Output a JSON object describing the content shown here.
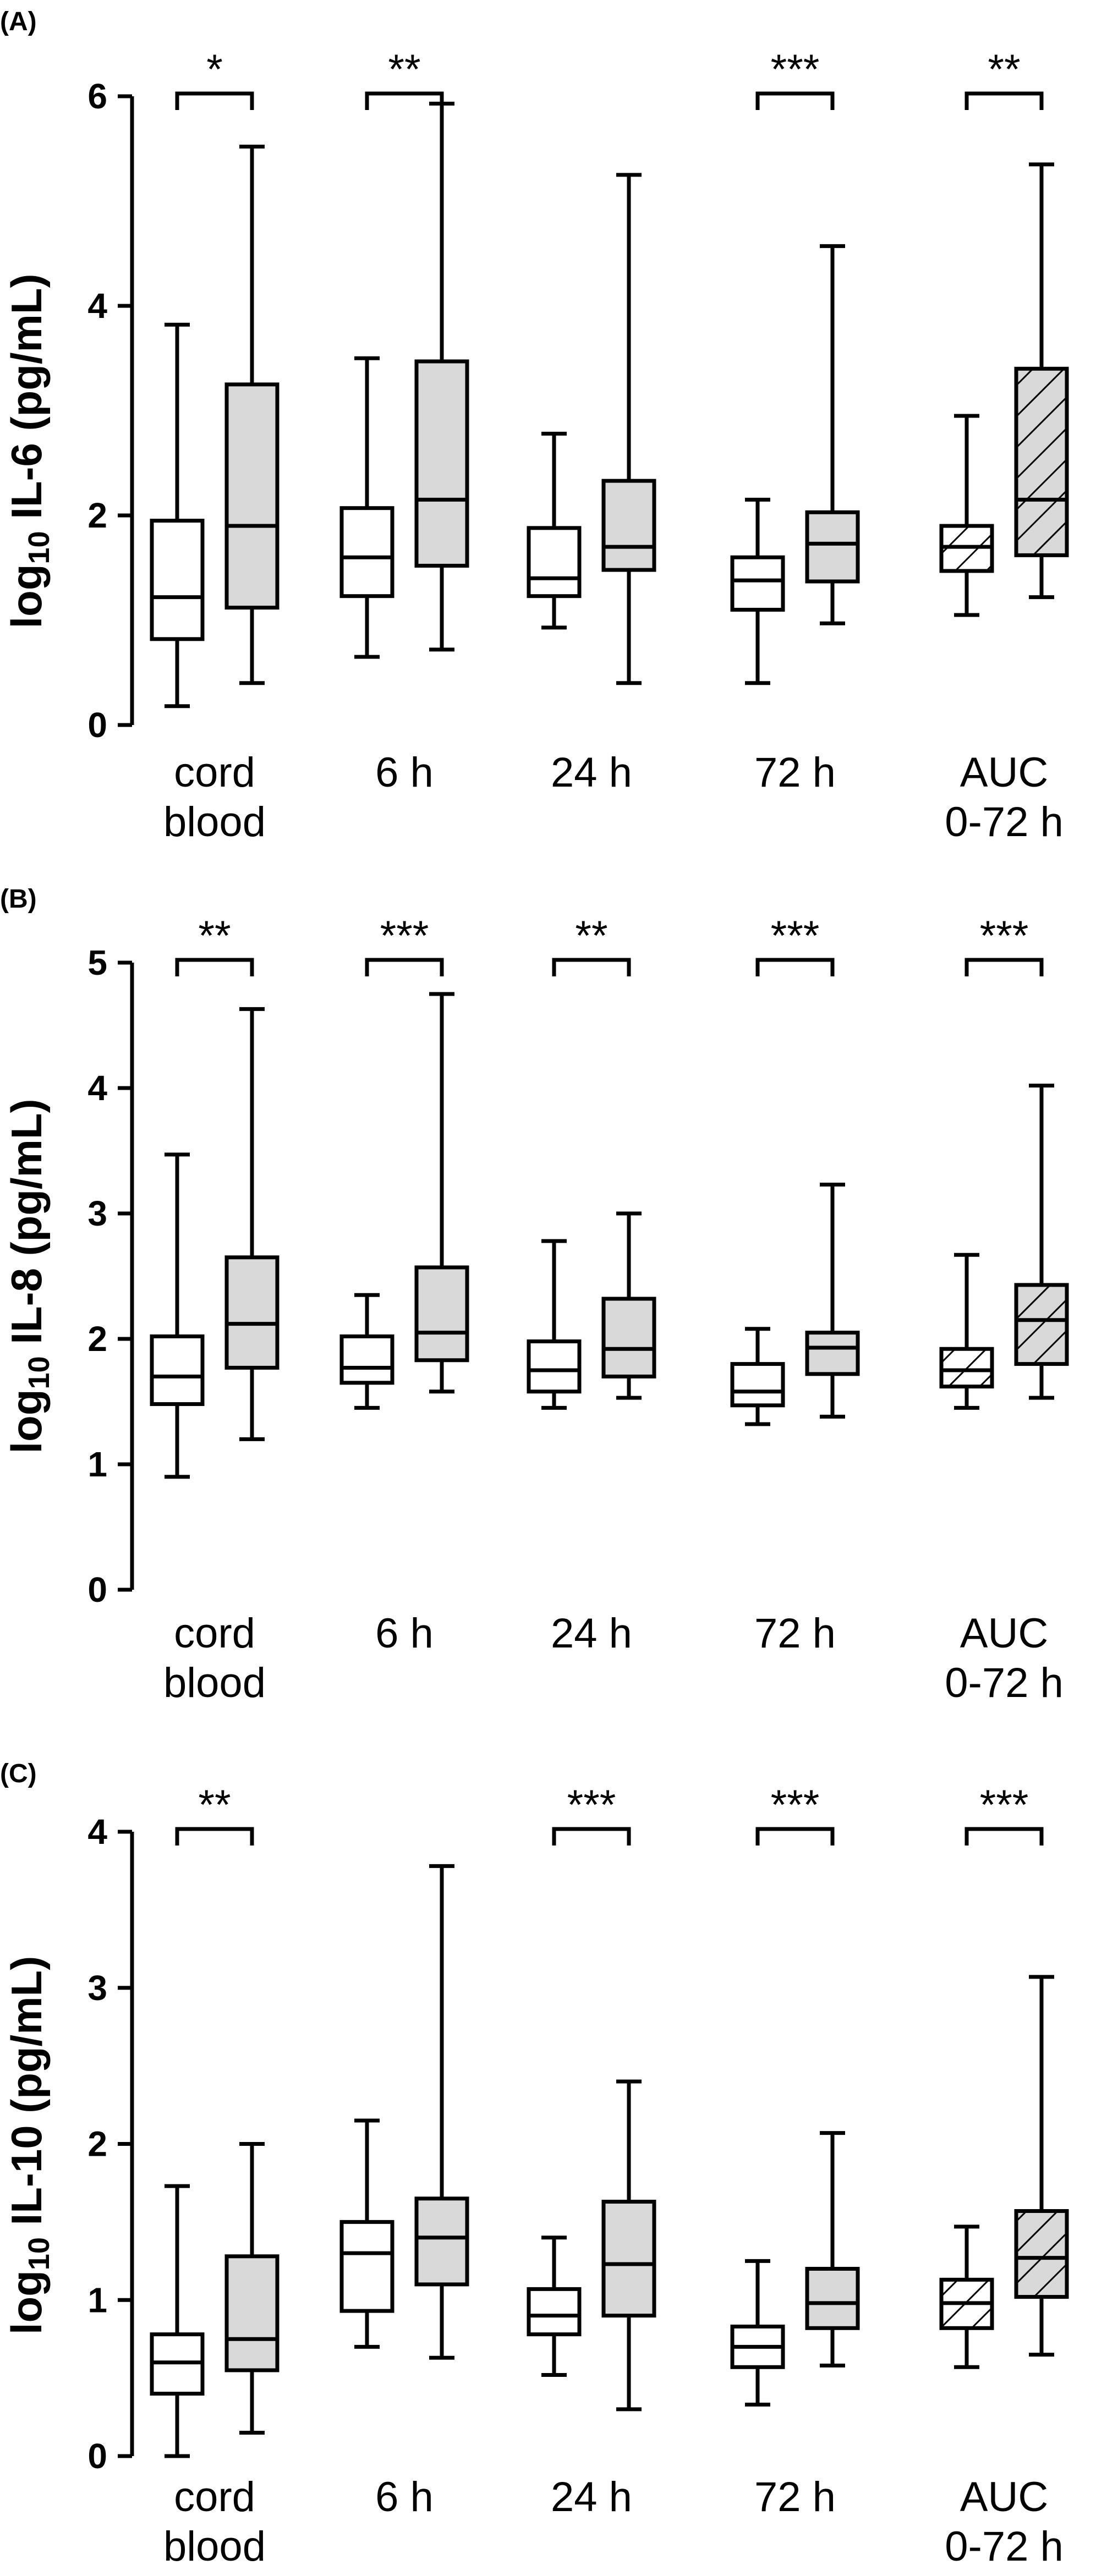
{
  "chart_data": [
    {
      "panel": "(A)",
      "type": "box",
      "ylabel": {
        "prefix": "log",
        "sub": "10",
        "rest": " IL-6 (pg/mL)"
      },
      "ylim": [
        0,
        6
      ],
      "yticks": [
        "0",
        "2",
        "4",
        "6"
      ],
      "yticks_values": [
        0,
        2,
        4,
        6
      ],
      "categories": [
        "cord blood",
        "6 h",
        "24 h",
        "72 h",
        "AUC 0-72 h"
      ],
      "category_lines": [
        [
          "cord",
          "blood"
        ],
        [
          "6 h"
        ],
        [
          "24 h"
        ],
        [
          "72 h"
        ],
        [
          "AUC",
          "0-72 h"
        ]
      ],
      "boxes": [
        [
          {
            "min": 0.18,
            "q1": 0.82,
            "median": 1.22,
            "q3": 1.95,
            "max": 3.82
          },
          {
            "min": 0.4,
            "q1": 1.12,
            "median": 1.9,
            "q3": 3.25,
            "max": 5.52
          }
        ],
        [
          {
            "min": 0.65,
            "q1": 1.23,
            "median": 1.6,
            "q3": 2.07,
            "max": 3.5
          },
          {
            "min": 0.72,
            "q1": 1.52,
            "median": 2.15,
            "q3": 3.47,
            "max": 5.93
          }
        ],
        [
          {
            "min": 0.93,
            "q1": 1.23,
            "median": 1.4,
            "q3": 1.88,
            "max": 2.78
          },
          {
            "min": 0.4,
            "q1": 1.48,
            "median": 1.7,
            "q3": 2.33,
            "max": 5.25
          }
        ],
        [
          {
            "min": 0.4,
            "q1": 1.1,
            "median": 1.38,
            "q3": 1.6,
            "max": 2.15
          },
          {
            "min": 0.97,
            "q1": 1.37,
            "median": 1.73,
            "q3": 2.03,
            "max": 4.57
          }
        ],
        [
          {
            "min": 1.05,
            "q1": 1.47,
            "median": 1.7,
            "q3": 1.9,
            "max": 2.95
          },
          {
            "min": 1.22,
            "q1": 1.62,
            "median": 2.15,
            "q3": 3.4,
            "max": 5.35
          }
        ]
      ],
      "significance": [
        "*",
        "**",
        "",
        "***",
        "**"
      ]
    },
    {
      "panel": "(B)",
      "type": "box",
      "ylabel": {
        "prefix": "log",
        "sub": "10",
        "rest": " IL-8 (pg/mL)"
      },
      "ylim": [
        0,
        5
      ],
      "yticks": [
        "0",
        "1",
        "2",
        "3",
        "4",
        "5"
      ],
      "yticks_values": [
        0,
        1,
        2,
        3,
        4,
        5
      ],
      "categories": [
        "cord blood",
        "6 h",
        "24 h",
        "72 h",
        "AUC 0-72 h"
      ],
      "category_lines": [
        [
          "cord",
          "blood"
        ],
        [
          "6 h"
        ],
        [
          "24 h"
        ],
        [
          "72 h"
        ],
        [
          "AUC",
          "0-72 h"
        ]
      ],
      "boxes": [
        [
          {
            "min": 0.9,
            "q1": 1.48,
            "median": 1.7,
            "q3": 2.02,
            "max": 3.47
          },
          {
            "min": 1.2,
            "q1": 1.77,
            "median": 2.12,
            "q3": 2.65,
            "max": 4.63
          }
        ],
        [
          {
            "min": 1.45,
            "q1": 1.65,
            "median": 1.77,
            "q3": 2.02,
            "max": 2.35
          },
          {
            "min": 1.58,
            "q1": 1.83,
            "median": 2.05,
            "q3": 2.57,
            "max": 4.75
          }
        ],
        [
          {
            "min": 1.45,
            "q1": 1.58,
            "median": 1.75,
            "q3": 1.98,
            "max": 2.78
          },
          {
            "min": 1.53,
            "q1": 1.7,
            "median": 1.92,
            "q3": 2.32,
            "max": 3.0
          }
        ],
        [
          {
            "min": 1.32,
            "q1": 1.47,
            "median": 1.58,
            "q3": 1.8,
            "max": 2.08
          },
          {
            "min": 1.38,
            "q1": 1.72,
            "median": 1.93,
            "q3": 2.05,
            "max": 3.23
          }
        ],
        [
          {
            "min": 1.45,
            "q1": 1.62,
            "median": 1.75,
            "q3": 1.92,
            "max": 2.67
          },
          {
            "min": 1.53,
            "q1": 1.8,
            "median": 2.15,
            "q3": 2.43,
            "max": 4.02
          }
        ]
      ],
      "significance": [
        "**",
        "***",
        "**",
        "***",
        "***"
      ]
    },
    {
      "panel": "(C)",
      "type": "box",
      "ylabel": {
        "prefix": "log",
        "sub": "10",
        "rest": " IL-10 (pg/mL)"
      },
      "ylim": [
        0,
        4
      ],
      "yticks": [
        "0",
        "1",
        "2",
        "3",
        "4"
      ],
      "yticks_values": [
        0,
        1,
        2,
        3,
        4
      ],
      "categories": [
        "cord blood",
        "6 h",
        "24 h",
        "72 h",
        "AUC 0-72 h"
      ],
      "category_lines": [
        [
          "cord",
          "blood"
        ],
        [
          "6 h"
        ],
        [
          "24 h"
        ],
        [
          "72 h"
        ],
        [
          "AUC",
          "0-72 h"
        ]
      ],
      "boxes": [
        [
          {
            "min": 0.0,
            "q1": 0.4,
            "median": 0.6,
            "q3": 0.78,
            "max": 1.73
          },
          {
            "min": 0.15,
            "q1": 0.55,
            "median": 0.75,
            "q3": 1.28,
            "max": 2.0
          }
        ],
        [
          {
            "min": 0.7,
            "q1": 0.93,
            "median": 1.3,
            "q3": 1.5,
            "max": 2.15
          },
          {
            "min": 0.63,
            "q1": 1.1,
            "median": 1.4,
            "q3": 1.65,
            "max": 3.78
          }
        ],
        [
          {
            "min": 0.52,
            "q1": 0.78,
            "median": 0.9,
            "q3": 1.07,
            "max": 1.4
          },
          {
            "min": 0.3,
            "q1": 0.9,
            "median": 1.23,
            "q3": 1.63,
            "max": 2.4
          }
        ],
        [
          {
            "min": 0.33,
            "q1": 0.57,
            "median": 0.7,
            "q3": 0.83,
            "max": 1.25
          },
          {
            "min": 0.58,
            "q1": 0.82,
            "median": 0.98,
            "q3": 1.2,
            "max": 2.07
          }
        ],
        [
          {
            "min": 0.57,
            "q1": 0.82,
            "median": 0.98,
            "q3": 1.13,
            "max": 1.47
          },
          {
            "min": 0.65,
            "q1": 1.02,
            "median": 1.27,
            "q3": 1.57,
            "max": 3.07
          }
        ]
      ],
      "significance": [
        "**",
        "",
        "***",
        "***",
        "***"
      ]
    }
  ],
  "colors": {
    "group_1_fill": "#ffffff",
    "group_2_fill": "#d9d9d9",
    "stroke": "#000000"
  }
}
